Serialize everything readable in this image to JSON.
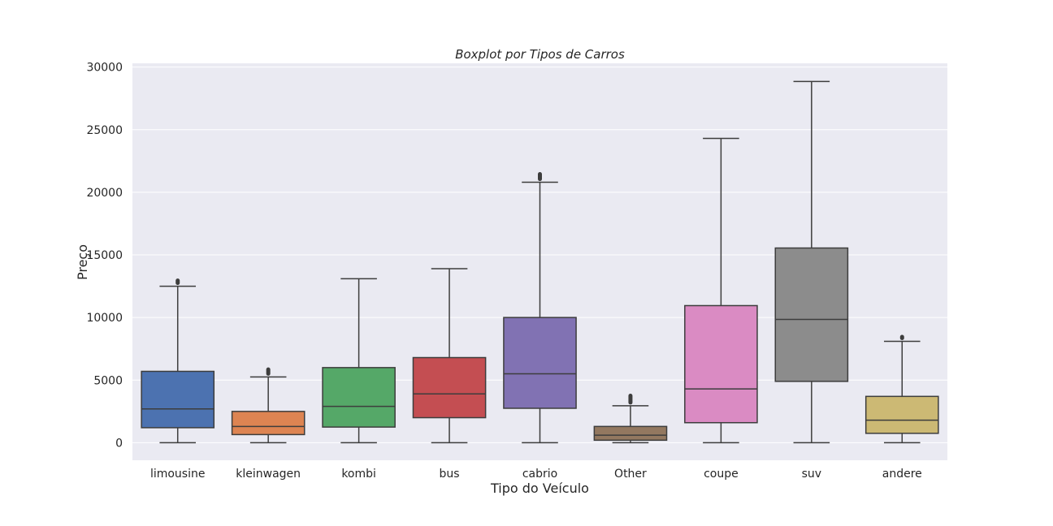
{
  "chart_data": {
    "type": "boxplot",
    "title": "Boxplot por Tipos de Carros",
    "xlabel": "Tipo do Veículo",
    "ylabel": "Preço",
    "ylim": [
      -1400,
      30300
    ],
    "yticks": [
      0,
      5000,
      10000,
      15000,
      20000,
      25000,
      30000
    ],
    "grid": true,
    "categories": [
      "limousine",
      "kleinwagen",
      "kombi",
      "bus",
      "cabrio",
      "Other",
      "coupe",
      "suv",
      "andere"
    ],
    "boxes": [
      {
        "category": "limousine",
        "color": "#4c72b0",
        "whisker_low": 0,
        "q1": 1200,
        "median": 2700,
        "q3": 5700,
        "whisker_high": 12500,
        "outliers_to": 12950
      },
      {
        "category": "kleinwagen",
        "color": "#dd8452",
        "whisker_low": 0,
        "q1": 650,
        "median": 1300,
        "q3": 2500,
        "whisker_high": 5250,
        "outliers_to": 5850
      },
      {
        "category": "kombi",
        "color": "#55a868",
        "whisker_low": 0,
        "q1": 1250,
        "median": 2900,
        "q3": 6000,
        "whisker_high": 13100,
        "outliers_to": null
      },
      {
        "category": "bus",
        "color": "#c44e52",
        "whisker_low": 0,
        "q1": 2000,
        "median": 3900,
        "q3": 6800,
        "whisker_high": 13900,
        "outliers_to": null
      },
      {
        "category": "cabrio",
        "color": "#8172b3",
        "whisker_low": 0,
        "q1": 2750,
        "median": 5500,
        "q3": 10000,
        "whisker_high": 20800,
        "outliers_to": 21450
      },
      {
        "category": "Other",
        "color": "#937860",
        "whisker_low": 0,
        "q1": 200,
        "median": 600,
        "q3": 1300,
        "whisker_high": 2950,
        "outliers_to": 3750
      },
      {
        "category": "coupe",
        "color": "#da8bc3",
        "whisker_low": 0,
        "q1": 1600,
        "median": 4300,
        "q3": 10950,
        "whisker_high": 24300,
        "outliers_to": null
      },
      {
        "category": "suv",
        "color": "#8c8c8c",
        "whisker_low": 0,
        "q1": 4900,
        "median": 9850,
        "q3": 15550,
        "whisker_high": 28850,
        "outliers_to": null
      },
      {
        "category": "andere",
        "color": "#ccb974",
        "whisker_low": 0,
        "q1": 750,
        "median": 1800,
        "q3": 3700,
        "whisker_high": 8100,
        "outliers_to": 8450
      }
    ],
    "colors": {
      "plot_background": "#eaeaf2",
      "grid": "#ffffff",
      "line": "#3d3d3d"
    }
  }
}
